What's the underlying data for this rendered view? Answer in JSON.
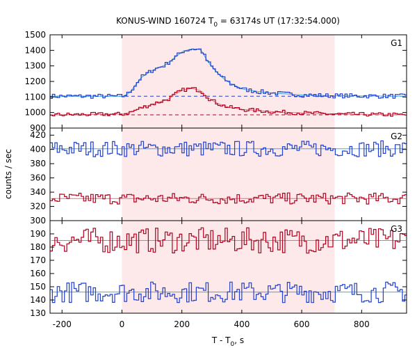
{
  "chart_data": {
    "type": "line",
    "title_main": "KONUS-WIND 160724 T",
    "title_sub": "0",
    "title_rest": " = 63174s UT (17:32:54.000)",
    "xlabel_main": "T - T",
    "xlabel_sub": "0",
    "xlabel_rest": ", s",
    "ylabel": "counts / sec",
    "xlim": [
      -240,
      950
    ],
    "xticks": [
      -200,
      0,
      200,
      400,
      600,
      800
    ],
    "highlight_interval": [
      0,
      710
    ],
    "colors": {
      "blue": "#1f3fcc",
      "red": "#b0001e",
      "fit_blue": "#3fa9e0",
      "fit_red": "#e07080",
      "shade": "#fde8ea"
    },
    "panels": [
      {
        "name": "G1",
        "ylim": [
          900,
          1500
        ],
        "yticks": [
          900,
          1000,
          1100,
          1200,
          1300,
          1400,
          1500
        ],
        "backgrounds": [
          {
            "series": "blue",
            "value": 1105
          },
          {
            "series": "red",
            "value": 985
          }
        ],
        "series": [
          {
            "color": "blue",
            "base": 1105,
            "noise": 9,
            "profile": [
              [
                -240,
                0
              ],
              [
                0,
                0
              ],
              [
                20,
                20
              ],
              [
                40,
                70
              ],
              [
                60,
                120
              ],
              [
                100,
                170
              ],
              [
                140,
                200
              ],
              [
                180,
                260
              ],
              [
                200,
                290
              ],
              [
                230,
                305
              ],
              [
                260,
                300
              ],
              [
                280,
                230
              ],
              [
                300,
                180
              ],
              [
                330,
                120
              ],
              [
                360,
                80
              ],
              [
                400,
                45
              ],
              [
                450,
                30
              ],
              [
                500,
                20
              ],
              [
                600,
                8
              ],
              [
                700,
                3
              ],
              [
                950,
                0
              ]
            ]
          },
          {
            "color": "red",
            "base": 985,
            "noise": 8,
            "profile": [
              [
                -240,
                0
              ],
              [
                0,
                5
              ],
              [
                30,
                20
              ],
              [
                60,
                45
              ],
              [
                100,
                70
              ],
              [
                150,
                100
              ],
              [
                180,
                140
              ],
              [
                200,
                160
              ],
              [
                230,
                170
              ],
              [
                260,
                155
              ],
              [
                290,
                100
              ],
              [
                320,
                70
              ],
              [
                350,
                50
              ],
              [
                400,
                35
              ],
              [
                500,
                20
              ],
              [
                600,
                12
              ],
              [
                700,
                5
              ],
              [
                950,
                0
              ]
            ]
          }
        ]
      },
      {
        "name": "G2",
        "ylim": [
          300,
          430
        ],
        "yticks": [
          300,
          320,
          340,
          360,
          380,
          400,
          420
        ],
        "backgrounds": [],
        "series": [
          {
            "color": "blue",
            "base": 401,
            "noise": 7,
            "profile": [
              [
                -240,
                0
              ],
              [
                950,
                0
              ]
            ]
          },
          {
            "color": "red",
            "base": 331,
            "noise": 5,
            "profile": [
              [
                -240,
                0
              ],
              [
                950,
                0
              ]
            ]
          }
        ]
      },
      {
        "name": "G3",
        "ylim": [
          130,
          200
        ],
        "yticks": [
          130,
          140,
          150,
          160,
          170,
          180,
          190
        ],
        "backgrounds": [],
        "series": [
          {
            "color": "red",
            "base": 185,
            "noise": 6,
            "profile": [
              [
                -240,
                0
              ],
              [
                950,
                0
              ]
            ]
          },
          {
            "color": "blue",
            "base": 146,
            "noise": 5,
            "profile": [
              [
                -240,
                0
              ],
              [
                950,
                0
              ]
            ]
          }
        ]
      }
    ]
  }
}
